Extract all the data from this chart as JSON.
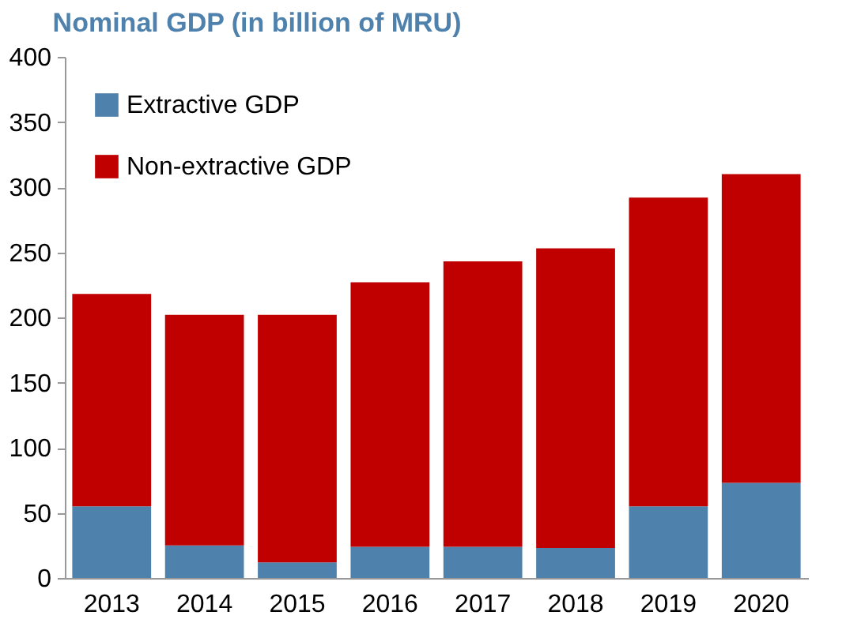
{
  "chart_data": {
    "type": "bar",
    "title": "Nominal GDP (in billion of MRU)",
    "stacked": true,
    "legend": "top left",
    "grid": false,
    "categories": [
      "2013",
      "2014",
      "2015",
      "2016",
      "2017",
      "2018",
      "2019",
      "2020"
    ],
    "series": [
      {
        "name": "Extractive GDP",
        "color": "#4f81ad",
        "values": [
          55,
          25,
          12,
          24,
          24,
          23,
          55,
          73
        ]
      },
      {
        "name": "Non-extractive GDP",
        "color": "#c00000",
        "values": [
          163,
          177,
          190,
          203,
          219,
          230,
          237,
          237
        ]
      }
    ],
    "ylim": [
      0,
      400
    ],
    "yticks": [
      0,
      50,
      100,
      150,
      200,
      250,
      300,
      350,
      400
    ]
  }
}
